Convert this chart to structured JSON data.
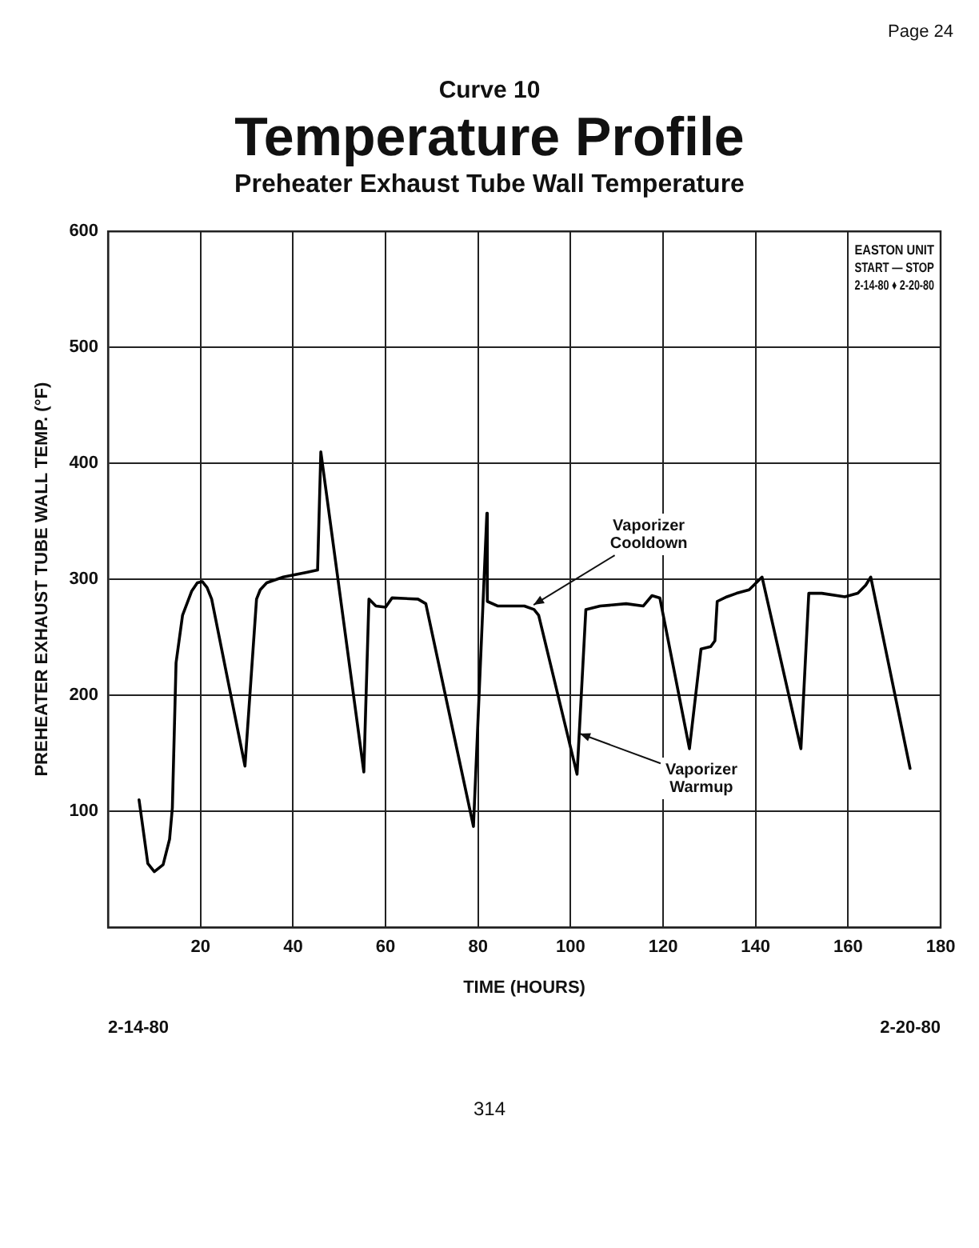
{
  "chart_data": {
    "type": "line",
    "title": "Temperature Profile",
    "subtitle": "Preheater Exhaust Tube Wall Temperature",
    "xlabel": "TIME (HOURS)",
    "ylabel": "PREHEATER EXHAUST TUBE WALL TEMP. (°F)",
    "x": [
      6.7,
      8.6,
      10,
      11.9,
      13.3,
      13.9,
      14.7,
      16.1,
      18.1,
      19.3,
      20.4,
      21.4,
      22.4,
      29.6,
      32.1,
      32.9,
      34.3,
      37.9,
      42.9,
      45.3,
      46,
      55.3,
      56.4,
      57.9,
      60,
      61.4,
      67,
      68.7,
      79,
      81.9,
      82,
      84.3,
      90,
      92.1,
      93.1,
      101.4,
      103.3,
      106.4,
      112,
      115.7,
      117.6,
      119.3,
      125.7,
      128.2,
      130.3,
      131.2,
      131.7,
      133.8,
      135.9,
      138.6,
      141.4,
      149.8,
      151.5,
      154.3,
      159.3,
      162.1,
      163.8,
      164.9,
      173.4
    ],
    "values": [
      110,
      55,
      48,
      54,
      76,
      103,
      228,
      269,
      290,
      297,
      298,
      293,
      283,
      139,
      283,
      291,
      297,
      302,
      306,
      308,
      410,
      134,
      283,
      277,
      276,
      284,
      283,
      279,
      87,
      357,
      281,
      277,
      277,
      274,
      269,
      132,
      274,
      277,
      279,
      277,
      286,
      284,
      154,
      240,
      242,
      247,
      281,
      285,
      288,
      291,
      302,
      154,
      288,
      288,
      285,
      288,
      295,
      302,
      137
    ],
    "color": "#000000",
    "line_style": "solid",
    "xlim": [
      0,
      180
    ],
    "xticks": [
      20,
      40,
      60,
      80,
      100,
      120,
      140,
      160,
      180
    ],
    "ylim": [
      0,
      600
    ],
    "yticks": [
      100,
      200,
      300,
      400,
      500,
      600
    ],
    "grid": true,
    "annotations": [
      "Curve 10",
      "Page 24",
      "314",
      "EASTON UNIT\nSTART — STOP\n2-14-80 ♦ 2-20-80",
      "2-14-80",
      "2-20-80",
      {
        "text": "Vaporizer Cooldown",
        "x": 92,
        "y": 278
      },
      {
        "text": "Vaporizer Warmup",
        "x": 102,
        "y": 167
      }
    ]
  }
}
